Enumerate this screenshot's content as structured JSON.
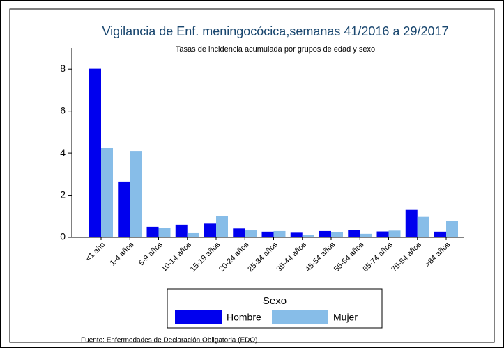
{
  "chart_data": {
    "type": "bar",
    "title": "Vigilancia de Enf. meningocócica,semanas 41/2016 a 29/2017",
    "subtitle": "Tasas de incidencia acumulada por grupos de edad y sexo",
    "categories": [
      "<1 año",
      "1-4 años",
      "5-9 años",
      "10-14 años",
      "15-19 años",
      "20-24 años",
      "25-34 años",
      "35-44 años",
      "45-54 años",
      "55-64 años",
      "65-74 años",
      "75-84 años",
      ">84 años"
    ],
    "series": [
      {
        "name": "Hombre",
        "color": "#0000ee",
        "values": [
          8.02,
          2.65,
          0.5,
          0.6,
          0.65,
          0.42,
          0.27,
          0.22,
          0.3,
          0.35,
          0.28,
          1.3,
          0.27
        ]
      },
      {
        "name": "Mujer",
        "color": "#87bde8",
        "values": [
          4.25,
          4.1,
          0.43,
          0.2,
          1.02,
          0.33,
          0.3,
          0.13,
          0.25,
          0.17,
          0.32,
          0.97,
          0.78
        ]
      }
    ],
    "ylim": [
      0,
      9
    ],
    "yticks": [
      0,
      2,
      4,
      6,
      8
    ],
    "grid": false,
    "legend_title": "Sexo",
    "legend_position": "bottom",
    "note": "Fuente: Enfermedades de Declaración Obligatoria (EDO)"
  }
}
